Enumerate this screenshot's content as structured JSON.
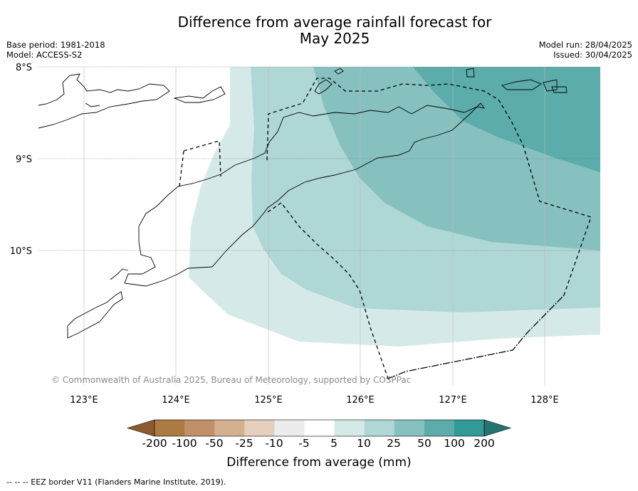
{
  "title": "Difference from average rainfall forecast for",
  "title_line2": "May 2025",
  "meta": {
    "base_period": "Base period: 1981-2018",
    "model": "Model: ACCESS-S2",
    "model_run": "Model run: 28/04/2025",
    "issued": "Issued: 30/04/2025"
  },
  "map": {
    "lat_ticks": [
      "8°S",
      "9°S",
      "10°S"
    ],
    "lon_ticks": [
      "123°E",
      "124°E",
      "125°E",
      "126°E",
      "127°E",
      "128°E"
    ],
    "copyright": "© Commonwealth of Australia 2025, Bureau of Meteorology, supported by COSPPac"
  },
  "colorbar": {
    "labels": [
      "-200",
      "-100",
      "-50",
      "-25",
      "-10",
      "-5",
      "5",
      "10",
      "25",
      "50",
      "100",
      "200"
    ],
    "colors": [
      "#8c5a2c",
      "#ad7a44",
      "#c09068",
      "#d2b090",
      "#e4d0bc",
      "#ececec",
      "#ffffff",
      "#d5eae8",
      "#aed7d5",
      "#86c1bf",
      "#5bacab",
      "#329a96",
      "#267472"
    ],
    "title": "Difference from average (mm)"
  },
  "footnote": "--  --  -- EEZ border V11 (Flanders Marine Institute, 2019)."
}
